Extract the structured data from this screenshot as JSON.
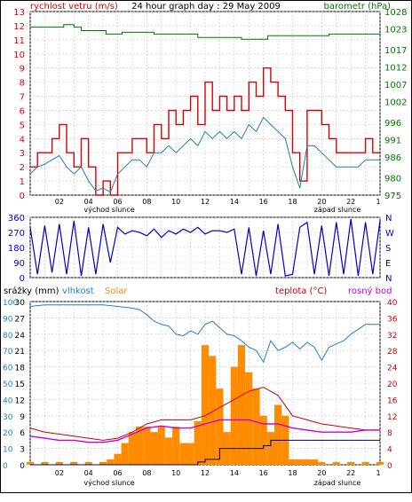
{
  "colors": {
    "wind": "#dd0000",
    "wind_avg": "#1a7fa8",
    "pressure": "#007700",
    "direction": "#0000cc",
    "humidity": "#1f7fd0",
    "rain": "#1f7fd0",
    "solar": "#ff8c00",
    "temperature": "#cc0000",
    "dewpoint": "#cc00cc",
    "grid": "#c8c8c8",
    "frame": "#000000"
  },
  "chart_data": [
    {
      "type": "line",
      "title": "24 hour graph day : 29 May 2009",
      "ylabel_left": "rychlost vetru (m/s)",
      "ylabel_right": "barometr (hPa)",
      "xlim": [
        0,
        24
      ],
      "ylim_left": [
        0,
        13
      ],
      "ylim_right": [
        975,
        1028
      ],
      "x_ticks": [
        "02",
        "04",
        "06",
        "08",
        "10",
        "12",
        "14",
        "16",
        "18",
        "20",
        "22"
      ],
      "x_ticks_extra": [
        "1"
      ],
      "y_ticks_left": [
        "0",
        "1",
        "2",
        "3",
        "4",
        "5",
        "6",
        "7",
        "8",
        "9",
        "10",
        "11",
        "12",
        "13"
      ],
      "y_ticks_right": [
        "975",
        "980",
        "986",
        "991",
        "996",
        "1002",
        "1007",
        "1012",
        "1017",
        "1023",
        "1028"
      ],
      "annotation_left": "východ slunce",
      "annotation_right": "západ slunce",
      "sunrise_hour": 4.0,
      "sunset_hour": 20.5,
      "series": [
        {
          "name": "gust",
          "x": [
            0,
            0.5,
            1,
            1.5,
            2,
            2.5,
            3,
            3.5,
            4,
            4.5,
            5,
            5.5,
            6,
            6.5,
            7,
            7.5,
            8,
            8.5,
            9,
            9.5,
            10,
            10.5,
            11,
            11.5,
            12,
            12.5,
            13,
            13.5,
            14,
            14.5,
            15,
            15.5,
            16,
            16.5,
            17,
            17.5,
            18,
            18.5,
            19,
            19.5,
            20,
            20.5,
            21,
            21.5,
            22,
            22.5,
            23,
            23.5,
            24
          ],
          "values": [
            2,
            3,
            3,
            4,
            5,
            3,
            2,
            4,
            2,
            0,
            1,
            0,
            3,
            3,
            4,
            4,
            3,
            5,
            4,
            6,
            5,
            6,
            7,
            5,
            8,
            6,
            7,
            6,
            7,
            6,
            8,
            7,
            9,
            8,
            7,
            6,
            3,
            1,
            6,
            6,
            5,
            4,
            3,
            3,
            3,
            3,
            4,
            3,
            3
          ]
        },
        {
          "name": "average",
          "x": [
            0,
            0.5,
            1,
            1.5,
            2,
            2.5,
            3,
            3.5,
            4,
            4.5,
            5,
            5.5,
            6,
            6.5,
            7,
            7.5,
            8,
            8.5,
            9,
            9.5,
            10,
            10.5,
            11,
            11.5,
            12,
            12.5,
            13,
            13.5,
            14,
            14.5,
            15,
            15.5,
            16,
            16.5,
            17,
            17.5,
            18,
            18.5,
            19,
            19.5,
            20,
            20.5,
            21,
            21.5,
            22,
            22.5,
            23,
            23.5,
            24
          ],
          "values": [
            1.5,
            2,
            2.2,
            2.5,
            2.8,
            2,
            1.5,
            2,
            1,
            0.3,
            0.5,
            0.2,
            1.5,
            2,
            2.5,
            2.5,
            2,
            3,
            3,
            3.5,
            3,
            3.5,
            4,
            3.5,
            4.5,
            4,
            4.5,
            4,
            4.5,
            4,
            5,
            4.5,
            5.5,
            5,
            4.5,
            4,
            2,
            0.5,
            3.5,
            3.5,
            3,
            2.5,
            2,
            2,
            2,
            2,
            2.5,
            2.5,
            2.5
          ]
        },
        {
          "name": "pressure",
          "x": [
            0,
            2,
            2.3,
            3,
            3.5,
            5,
            5.2,
            6,
            6.3,
            8,
            8.5,
            11,
            11.5,
            14,
            14.5,
            16,
            16.3,
            20,
            20.5,
            24
          ],
          "values": [
            1023.5,
            1023.5,
            1024.2,
            1023.5,
            1022.5,
            1022.5,
            1021.5,
            1021.5,
            1022,
            1022,
            1021.5,
            1021.5,
            1020.5,
            1020.5,
            1020,
            1020,
            1021,
            1021,
            1021.5,
            1021.5
          ]
        }
      ]
    },
    {
      "type": "line",
      "title": "",
      "xlim": [
        0,
        24
      ],
      "ylim": [
        0,
        360
      ],
      "y_ticks_left": [
        "0",
        "90",
        "180",
        "270",
        "360"
      ],
      "y_ticks_right": [
        "N",
        "E",
        "S",
        "W",
        "N"
      ],
      "series": [
        {
          "name": "direction",
          "x": [
            0,
            0.5,
            1,
            1.5,
            2,
            2.5,
            3,
            3.5,
            4,
            4.5,
            5,
            5.5,
            6,
            6.5,
            7,
            7.5,
            8,
            8.5,
            9,
            9.5,
            10,
            10.5,
            11,
            11.5,
            12,
            12.5,
            13,
            13.5,
            14,
            14.5,
            15,
            15.5,
            16,
            16.5,
            17,
            17.5,
            18,
            18.5,
            19,
            19.5,
            20,
            20.5,
            21,
            21.5,
            22,
            22.5,
            23,
            23.5,
            24
          ],
          "values": [
            300,
            20,
            310,
            30,
            320,
            20,
            340,
            10,
            300,
            20,
            320,
            90,
            300,
            260,
            280,
            270,
            250,
            290,
            240,
            280,
            260,
            290,
            270,
            300,
            260,
            280,
            280,
            270,
            290,
            20,
            300,
            10,
            280,
            20,
            320,
            10,
            20,
            300,
            330,
            20,
            310,
            10,
            330,
            20,
            350,
            10,
            330,
            20,
            340
          ]
        }
      ]
    },
    {
      "type": "line",
      "title": "",
      "ylabel_left": "srážky (mm)",
      "ylabel_left2": "vlhkost",
      "ylabel_left3": "Solar",
      "ylabel_right": "teplota (°C)",
      "ylabel_right2": "rosný bod",
      "xlim": [
        0,
        24
      ],
      "ylim_rain": [
        0,
        30
      ],
      "ylim_humidity": [
        0,
        100
      ],
      "ylim_temperature": [
        0,
        40
      ],
      "x_ticks": [
        "02",
        "04",
        "06",
        "08",
        "10",
        "12",
        "14",
        "16",
        "18",
        "20",
        "22"
      ],
      "x_ticks_extra": [
        "1"
      ],
      "y_ticks_rain": [
        "0",
        "3",
        "6",
        "9",
        "12",
        "15",
        "18",
        "21",
        "24",
        "27",
        "30"
      ],
      "y_ticks_humidity": [
        "0",
        "10",
        "20",
        "30",
        "40",
        "50",
        "60",
        "70",
        "80",
        "90",
        "100"
      ],
      "y_ticks_temperature": [
        "0",
        "4",
        "8",
        "12",
        "16",
        "20",
        "24",
        "28",
        "32",
        "36",
        "40"
      ],
      "annotation_left": "východ slunce",
      "annotation_right": "západ slunce",
      "series": [
        {
          "name": "humidity",
          "x": [
            0,
            1,
            2,
            3,
            4,
            5,
            6,
            7,
            7.5,
            8,
            8.5,
            9,
            9.5,
            10,
            10.5,
            11,
            11.5,
            12,
            12.5,
            13,
            13.5,
            14,
            14.5,
            15,
            15.5,
            16,
            16.5,
            17,
            17.5,
            18,
            18.5,
            19,
            19.5,
            20,
            20.5,
            21,
            21.5,
            22,
            22.5,
            23,
            23.5,
            24
          ],
          "values": [
            97,
            98,
            98,
            98,
            98,
            98,
            97,
            96,
            95,
            92,
            88,
            86,
            85,
            80,
            79,
            82,
            80,
            86,
            88,
            84,
            80,
            79,
            76,
            72,
            70,
            63,
            76,
            70,
            72,
            75,
            71,
            75,
            72,
            64,
            72,
            74,
            76,
            80,
            83,
            86,
            86,
            86
          ]
        },
        {
          "name": "solar",
          "x": [
            0,
            1,
            2,
            3,
            4,
            5,
            5.5,
            6,
            6.5,
            7,
            7.5,
            8,
            8.5,
            9,
            9.5,
            10,
            10.5,
            11,
            11.5,
            12,
            12.5,
            13,
            13.5,
            14,
            14.5,
            15,
            15.5,
            16,
            16.5,
            17,
            17.5,
            18,
            18.5,
            19,
            19.5,
            20,
            21,
            22,
            23,
            24
          ],
          "values": [
            0.5,
            0.5,
            0.5,
            0.5,
            0.5,
            0.5,
            1,
            2,
            4,
            6,
            7,
            7,
            6,
            7,
            5,
            7,
            4,
            4,
            8,
            22,
            20,
            14,
            6,
            18,
            22,
            17,
            14,
            9,
            6,
            11,
            9,
            1,
            1,
            1,
            1,
            0.5,
            0.5,
            0.5,
            0.5,
            0.5
          ]
        },
        {
          "name": "rain",
          "x": [
            0,
            10.5,
            11,
            11.5,
            12,
            13,
            14,
            15,
            16,
            16.5,
            17,
            18,
            19,
            20,
            21,
            22,
            23,
            24
          ],
          "values": [
            0,
            0,
            0,
            0.5,
            1,
            3,
            3,
            3,
            3.5,
            4.5,
            4.5,
            4.5,
            4.5,
            4.5,
            4.5,
            4.5,
            4.5,
            4.5
          ]
        },
        {
          "name": "temperature",
          "x": [
            0,
            1,
            2,
            3,
            4,
            5,
            6,
            7,
            8,
            9,
            10,
            11,
            12,
            13,
            14,
            15,
            16,
            17,
            18,
            19,
            20,
            21,
            22,
            23,
            24
          ],
          "values": [
            9,
            8,
            7.5,
            7,
            6.5,
            6,
            6.5,
            8,
            10,
            11,
            11,
            11,
            12,
            14,
            16,
            18,
            19,
            17,
            12,
            11,
            10,
            9.5,
            9,
            8.5,
            8.5
          ]
        },
        {
          "name": "dewpoint",
          "x": [
            0,
            1,
            2,
            3,
            4,
            5,
            6,
            7,
            8,
            9,
            10,
            11,
            12,
            13,
            14,
            15,
            16,
            17,
            18,
            19,
            20,
            21,
            22,
            23,
            24
          ],
          "values": [
            7,
            6.5,
            6,
            6,
            5.5,
            5.5,
            6,
            7.5,
            9,
            9.5,
            9,
            9,
            10,
            11,
            11,
            11,
            10,
            10,
            9,
            8.5,
            8,
            8,
            8,
            8.5,
            8.5
          ]
        }
      ]
    }
  ]
}
